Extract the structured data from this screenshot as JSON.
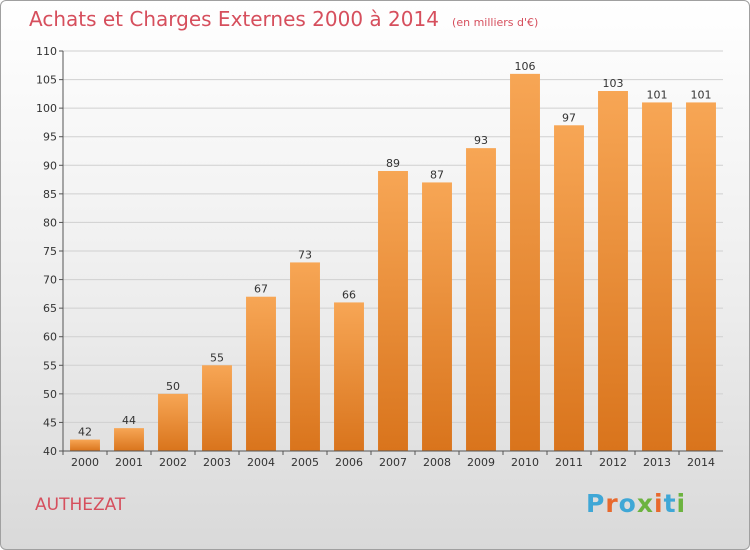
{
  "header": {
    "title": "Achats et Charges Externes 2000 à 2014",
    "subtitle": "(en milliers d'€)"
  },
  "commune": "AUTHEZAT",
  "logo": {
    "text": "Proxiti",
    "colors": [
      "#3fa7d6",
      "#e8692d",
      "#3fa7d6",
      "#6cb33f",
      "#e8692d",
      "#3fa7d6",
      "#6cb33f"
    ]
  },
  "chart_data": {
    "type": "bar",
    "categories": [
      "2000",
      "2001",
      "2002",
      "2003",
      "2004",
      "2005",
      "2006",
      "2007",
      "2008",
      "2009",
      "2010",
      "2011",
      "2012",
      "2013",
      "2014"
    ],
    "values": [
      42,
      44,
      50,
      55,
      67,
      73,
      66,
      89,
      87,
      93,
      106,
      97,
      103,
      101,
      101
    ],
    "ylim": [
      40,
      110
    ],
    "yticks": [
      40,
      45,
      50,
      55,
      60,
      65,
      70,
      75,
      80,
      85,
      90,
      95,
      100,
      105,
      110
    ],
    "grid": true,
    "legend": "none",
    "colors": {
      "bar_light": "#f7a655",
      "bar_dark": "#d9741c",
      "grid": "#d0d0d0",
      "axis": "#555555"
    }
  }
}
